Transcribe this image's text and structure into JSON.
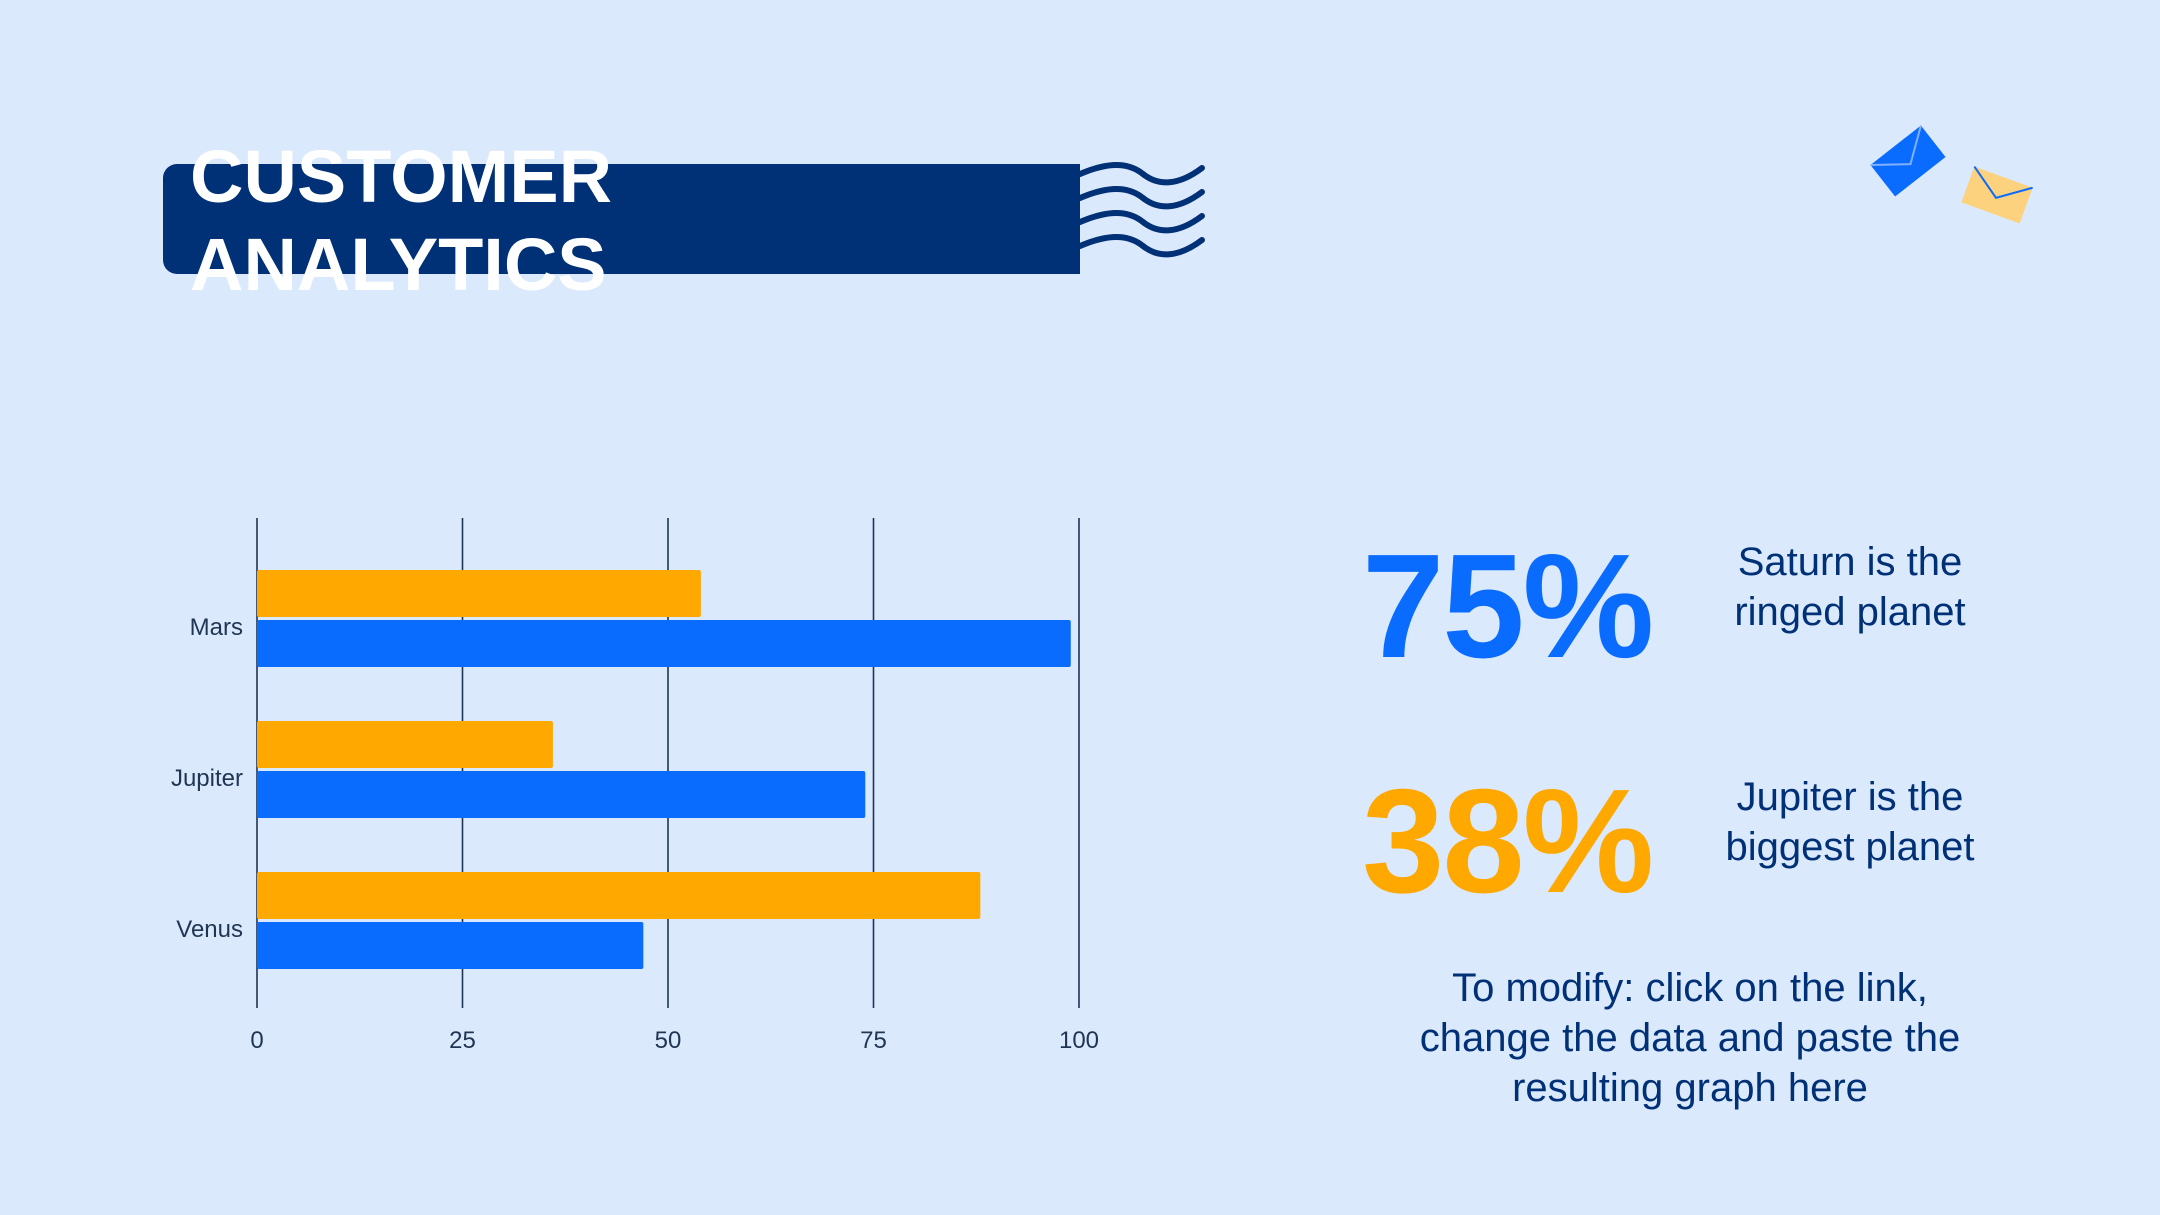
{
  "title": {
    "line1": "CUSTOMER",
    "line2": "ANALYTICS"
  },
  "colors": {
    "background": "#dbe9fd",
    "navy": "#003075",
    "blue": "#0a6bff",
    "orange": "#ffa800",
    "envelope_yellow": "#fcd27f"
  },
  "icons": [
    "wave-lines-icon",
    "blue-envelope-icon",
    "yellow-envelope-icon"
  ],
  "chart_data": {
    "type": "bar",
    "orientation": "horizontal",
    "categories": [
      "Mars",
      "Jupiter",
      "Venus"
    ],
    "series": [
      {
        "color": "#ffa800",
        "values": [
          54,
          36,
          88
        ]
      },
      {
        "color": "#0a6bff",
        "values": [
          99,
          74,
          47
        ]
      }
    ],
    "xlim": [
      0,
      100
    ],
    "xticks": [
      "0",
      "25",
      "50",
      "75",
      "100"
    ],
    "grid": "vertical"
  },
  "stats": [
    {
      "value": "75%",
      "text_line1": "Saturn is the",
      "text_line2": "ringed planet"
    },
    {
      "value": "38%",
      "text_line1": "Jupiter is the",
      "text_line2": "biggest planet"
    }
  ],
  "note": {
    "line1": "To modify: click on the link,",
    "line2": "change the data and paste the",
    "line3": "resulting graph here"
  }
}
